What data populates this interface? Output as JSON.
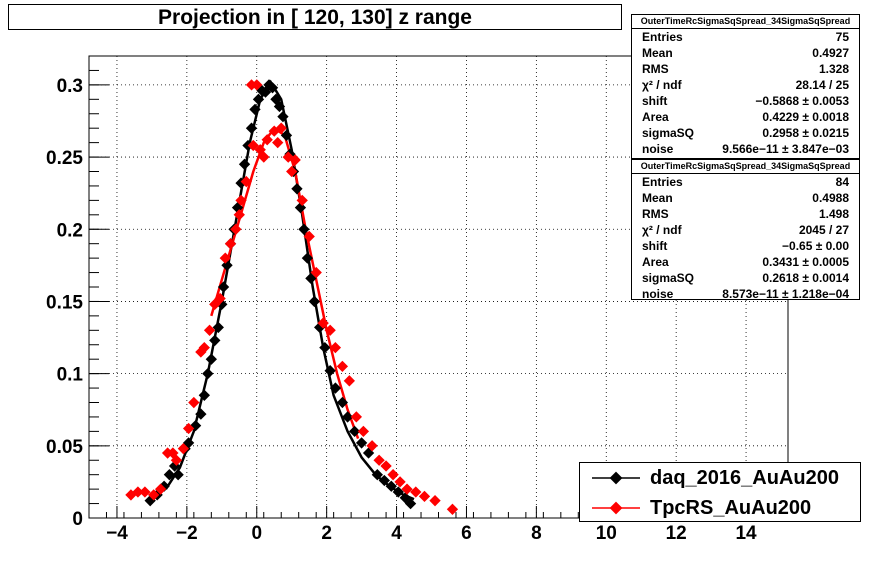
{
  "title": "Projection in [ 120, 130] z range",
  "chart_data": {
    "type": "scatter",
    "title": "Projection in [ 120, 130] z range",
    "xlabel": "",
    "ylabel": "",
    "xlim": [
      -4.8,
      15.2
    ],
    "ylim": [
      0,
      0.32
    ],
    "grid": true,
    "legend_position": "bottom-right",
    "x_ticks": [
      "−4",
      "−2",
      "0",
      "2",
      "4",
      "6",
      "8",
      "10",
      "12",
      "14"
    ],
    "y_ticks": [
      "0",
      "0.05",
      "0.1",
      "0.15",
      "0.2",
      "0.25",
      "0.3"
    ],
    "series": [
      {
        "name": "daq_2016_AuAu200",
        "color": "#000000",
        "points": [
          [
            -3.05,
            0.012
          ],
          [
            -2.85,
            0.016
          ],
          [
            -2.65,
            0.022
          ],
          [
            -2.5,
            0.03
          ],
          [
            -2.35,
            0.036
          ],
          [
            -2.25,
            0.03
          ],
          [
            -2.05,
            0.048
          ],
          [
            -1.95,
            0.052
          ],
          [
            -1.75,
            0.064
          ],
          [
            -1.6,
            0.072
          ],
          [
            -1.5,
            0.085
          ],
          [
            -1.4,
            0.1
          ],
          [
            -1.3,
            0.11
          ],
          [
            -1.2,
            0.123
          ],
          [
            -1.1,
            0.132
          ],
          [
            -1.0,
            0.148
          ],
          [
            -0.95,
            0.16
          ],
          [
            -0.85,
            0.175
          ],
          [
            -0.75,
            0.19
          ],
          [
            -0.65,
            0.2
          ],
          [
            -0.55,
            0.215
          ],
          [
            -0.45,
            0.232
          ],
          [
            -0.35,
            0.245
          ],
          [
            -0.25,
            0.258
          ],
          [
            -0.15,
            0.27
          ],
          [
            -0.05,
            0.283
          ],
          [
            0.05,
            0.29
          ],
          [
            0.15,
            0.296
          ],
          [
            0.25,
            0.295
          ],
          [
            0.35,
            0.3
          ],
          [
            0.45,
            0.298
          ],
          [
            0.55,
            0.29
          ],
          [
            0.65,
            0.285
          ],
          [
            0.75,
            0.278
          ],
          [
            0.85,
            0.265
          ],
          [
            0.95,
            0.252
          ],
          [
            1.05,
            0.24
          ],
          [
            1.15,
            0.228
          ],
          [
            1.25,
            0.215
          ],
          [
            1.35,
            0.2
          ],
          [
            1.45,
            0.18
          ],
          [
            1.55,
            0.166
          ],
          [
            1.65,
            0.15
          ],
          [
            1.8,
            0.132
          ],
          [
            1.95,
            0.118
          ],
          [
            2.1,
            0.102
          ],
          [
            2.25,
            0.09
          ],
          [
            2.45,
            0.08
          ],
          [
            2.6,
            0.07
          ],
          [
            2.8,
            0.06
          ],
          [
            3.0,
            0.052
          ],
          [
            3.2,
            0.045
          ],
          [
            3.45,
            0.03
          ],
          [
            3.65,
            0.026
          ],
          [
            3.85,
            0.022
          ],
          [
            4.05,
            0.018
          ],
          [
            4.25,
            0.014
          ],
          [
            4.4,
            0.01
          ]
        ],
        "fit": {
          "shift": -0.5868,
          "area": 0.4229,
          "sigmaSQ": 0.2958,
          "noise": 0.0,
          "curve": [
            [
              -2.6,
              0.02
            ],
            [
              -2.2,
              0.035
            ],
            [
              -1.8,
              0.06
            ],
            [
              -1.4,
              0.1
            ],
            [
              -1.0,
              0.15
            ],
            [
              -0.6,
              0.205
            ],
            [
              -0.2,
              0.26
            ],
            [
              0.1,
              0.29
            ],
            [
              0.4,
              0.302
            ],
            [
              0.7,
              0.29
            ],
            [
              1.0,
              0.255
            ],
            [
              1.3,
              0.21
            ],
            [
              1.6,
              0.16
            ],
            [
              1.9,
              0.118
            ],
            [
              2.2,
              0.085
            ],
            [
              2.6,
              0.06
            ],
            [
              3.0,
              0.042
            ],
            [
              3.4,
              0.03
            ],
            [
              3.8,
              0.022
            ],
            [
              4.2,
              0.016
            ],
            [
              4.5,
              0.013
            ]
          ]
        }
      },
      {
        "name": "TpcRS_AuAu200",
        "color": "#ff0000",
        "points": [
          [
            -3.6,
            0.016
          ],
          [
            -3.4,
            0.018
          ],
          [
            -3.2,
            0.018
          ],
          [
            -2.95,
            0.016
          ],
          [
            -2.75,
            0.02
          ],
          [
            -2.55,
            0.045
          ],
          [
            -2.4,
            0.045
          ],
          [
            -2.3,
            0.04
          ],
          [
            -2.1,
            0.048
          ],
          [
            -1.95,
            0.062
          ],
          [
            -1.8,
            0.08
          ],
          [
            -1.6,
            0.115
          ],
          [
            -1.5,
            0.118
          ],
          [
            -1.35,
            0.13
          ],
          [
            -1.2,
            0.148
          ],
          [
            -1.05,
            0.152
          ],
          [
            -0.9,
            0.18
          ],
          [
            -0.75,
            0.19
          ],
          [
            -0.6,
            0.2
          ],
          [
            -0.45,
            0.22
          ],
          [
            -0.3,
            0.233
          ],
          [
            -0.1,
            0.258
          ],
          [
            0.1,
            0.255
          ],
          [
            0.3,
            0.262
          ],
          [
            0.5,
            0.268
          ],
          [
            0.7,
            0.27
          ],
          [
            0.9,
            0.25
          ],
          [
            1.1,
            0.248
          ],
          [
            1.3,
            0.22
          ],
          [
            1.5,
            0.195
          ],
          [
            1.7,
            0.17
          ],
          [
            1.9,
            0.135
          ],
          [
            2.1,
            0.13
          ],
          [
            2.25,
            0.118
          ],
          [
            2.45,
            0.105
          ],
          [
            2.65,
            0.095
          ],
          [
            2.85,
            0.07
          ],
          [
            3.05,
            0.06
          ],
          [
            3.3,
            0.05
          ],
          [
            3.5,
            0.04
          ],
          [
            3.7,
            0.036
          ],
          [
            3.9,
            0.03
          ],
          [
            4.1,
            0.025
          ],
          [
            4.3,
            0.02
          ],
          [
            4.55,
            0.018
          ],
          [
            4.8,
            0.015
          ],
          [
            5.1,
            0.012
          ],
          [
            5.6,
            0.006
          ],
          [
            -0.15,
            0.3
          ],
          [
            0.0,
            0.3
          ],
          [
            0.2,
            0.25
          ],
          [
            0.6,
            0.26
          ],
          [
            -0.5,
            0.21
          ],
          [
            1.0,
            0.24
          ]
        ],
        "fit": {
          "shift": -0.65,
          "area": 0.3431,
          "sigmaSQ": 0.2618,
          "noise": 0.0,
          "curve": [
            [
              -1.3,
              0.14
            ],
            [
              -1.0,
              0.165
            ],
            [
              -0.7,
              0.19
            ],
            [
              -0.4,
              0.215
            ],
            [
              -0.1,
              0.24
            ],
            [
              0.2,
              0.26
            ],
            [
              0.5,
              0.27
            ],
            [
              0.8,
              0.265
            ],
            [
              1.1,
              0.24
            ],
            [
              1.4,
              0.2
            ],
            [
              1.7,
              0.165
            ],
            [
              2.0,
              0.13
            ],
            [
              2.3,
              0.1
            ],
            [
              2.6,
              0.075
            ],
            [
              2.9,
              0.055
            ]
          ]
        }
      }
    ]
  },
  "stats_boxes": [
    {
      "header": "OuterTimeRcSigmaSqSpread_34SigmaSqSpread",
      "rows": [
        {
          "k": "Entries",
          "v": "75"
        },
        {
          "k": "Mean",
          "v": "0.4927"
        },
        {
          "k": "RMS",
          "v": "1.328"
        },
        {
          "k": "χ² / ndf",
          "v": "28.14 / 25"
        },
        {
          "k": "shift",
          "v": "−0.5868 ± 0.0053"
        },
        {
          "k": "Area",
          "v": "0.4229 ± 0.0018"
        },
        {
          "k": "sigmaSQ",
          "v": "0.2958 ± 0.0215"
        },
        {
          "k": "noise",
          "v": "9.566e−11 ± 3.847e−03"
        }
      ]
    },
    {
      "header": "OuterTimeRcSigmaSqSpread_34SigmaSqSpread",
      "rows": [
        {
          "k": "Entries",
          "v": "84"
        },
        {
          "k": "Mean",
          "v": "0.4988"
        },
        {
          "k": "RMS",
          "v": "1.498"
        },
        {
          "k": "χ² / ndf",
          "v": "2045 / 27"
        },
        {
          "k": "shift",
          "v": "−0.65 ± 0.00"
        },
        {
          "k": "Area",
          "v": "0.3431 ± 0.0005"
        },
        {
          "k": "sigmaSQ",
          "v": "0.2618 ± 0.0014"
        },
        {
          "k": "noise",
          "v": "8.573e−11 ± 1.218e−04"
        }
      ]
    }
  ],
  "legend": [
    {
      "label": "daq_2016_AuAu200",
      "color": "#000000"
    },
    {
      "label": "TpcRS_AuAu200",
      "color": "#ff0000"
    }
  ]
}
